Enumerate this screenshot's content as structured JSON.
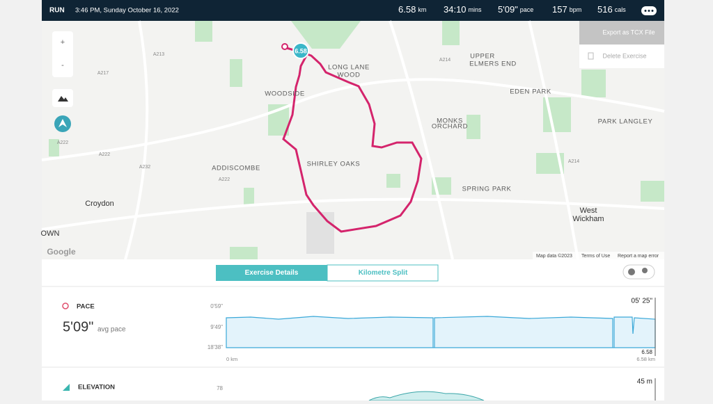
{
  "header": {
    "activity": "RUN",
    "datetime": "3:46 PM, Sunday October 16, 2022",
    "stats": [
      {
        "value": "6.58",
        "unit": "km"
      },
      {
        "value": "34:10",
        "unit": "mins"
      },
      {
        "value": "5'09\"",
        "unit": "pace"
      },
      {
        "value": "157",
        "unit": "bpm"
      },
      {
        "value": "516",
        "unit": "cals"
      }
    ]
  },
  "menu": {
    "items": [
      "Export as TCX File",
      "Delete Exercise"
    ]
  },
  "map": {
    "zoom_in": "+",
    "zoom_out": "-",
    "distance_badge": "6.58",
    "labels": [
      "LONG LANE",
      "WOOD",
      "UPPER",
      "ELMERS END",
      "EDEN PARK",
      "WOODSIDE",
      "MONKS",
      "ORCHARD",
      "PARK LANGLEY",
      "SHIRLEY OAKS",
      "ADDISCOMBE",
      "SPRING PARK",
      "Croydon",
      "West",
      "Wickham",
      "OWN"
    ],
    "roads": [
      "A213",
      "A217",
      "A222",
      "A222",
      "A232",
      "A214",
      "A214",
      "A222"
    ],
    "footer": {
      "logo": "Google",
      "data": "Map data ©2023",
      "terms": "Terms of Use",
      "report": "Report a map error"
    }
  },
  "tabs": [
    "Exercise Details",
    "Kilometre Split"
  ],
  "pace": {
    "title": "PACE",
    "value": "5'09\"",
    "label": "avg pace",
    "chart": {
      "y_labels": [
        "0'59\"",
        "9'49\"",
        "18'38\""
      ],
      "x_start": "0 km",
      "x_end": "6.58 km",
      "top_right": "05' 25\"",
      "end_value": "6.58"
    }
  },
  "elevation": {
    "title": "ELEVATION",
    "y_label": "78",
    "top_right": "45 m"
  }
}
